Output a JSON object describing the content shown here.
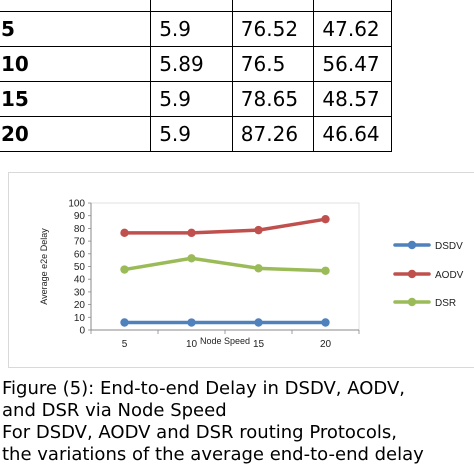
{
  "table": {
    "header": [
      "",
      "",
      "",
      ""
    ],
    "rows": [
      [
        "5",
        "5.9",
        "76.52",
        "47.62"
      ],
      [
        "10",
        "5.89",
        "76.5",
        "56.47"
      ],
      [
        "15",
        "5.9",
        "78.65",
        "48.57"
      ],
      [
        "20",
        "5.9",
        "87.26",
        "46.64"
      ]
    ]
  },
  "chart_data": {
    "type": "line",
    "title": "",
    "x": [
      5,
      10,
      15,
      20
    ],
    "x_ticks": [
      "5",
      "10",
      "15",
      "20"
    ],
    "xlabel": "Node Speed",
    "ylabel": "Average e2e Delay",
    "ylim": [
      0,
      100
    ],
    "y_ticks": [
      "0",
      "10",
      "20",
      "30",
      "40",
      "50",
      "60",
      "70",
      "80",
      "90",
      "100"
    ],
    "grid": false,
    "legend_position": "right",
    "series": [
      {
        "name": "DSDV",
        "color": "#4f81bd",
        "values": [
          5.9,
          5.89,
          5.9,
          5.9
        ]
      },
      {
        "name": "AODV",
        "color": "#c0504d",
        "values": [
          76.52,
          76.5,
          78.65,
          87.26
        ]
      },
      {
        "name": "DSR",
        "color": "#9bbb59",
        "values": [
          47.62,
          56.47,
          48.57,
          46.64
        ]
      }
    ]
  },
  "caption": {
    "line1": "Figure (5): End-to-end Delay in DSDV, AODV,",
    "line2": "and DSR via Node Speed",
    "line3": "For DSDV, AODV and DSR routing Protocols,",
    "line4": "the variations of the average end-to-end delay"
  }
}
